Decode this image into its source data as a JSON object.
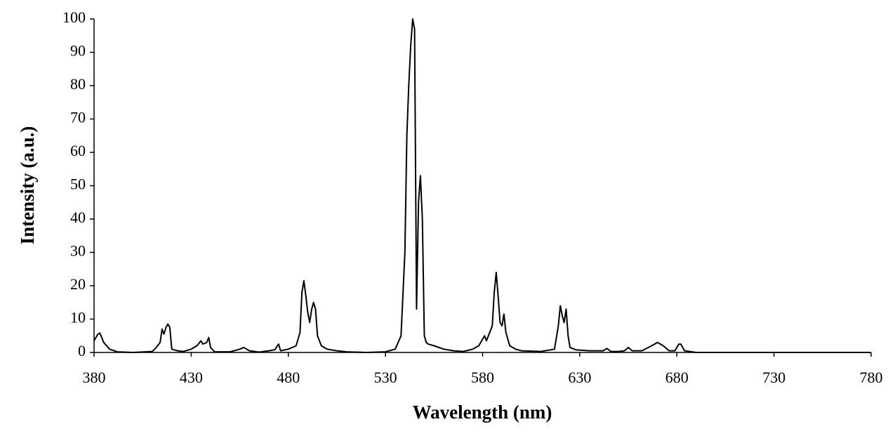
{
  "chart_data": {
    "type": "line",
    "xlabel": "Wavelength (nm)",
    "ylabel": "Intensity (a.u.)",
    "xlim": [
      380,
      780
    ],
    "xticks": [
      380,
      430,
      480,
      530,
      580,
      630,
      680,
      730,
      780
    ],
    "ylim": [
      0,
      100
    ],
    "yticks": [
      0,
      10,
      20,
      30,
      40,
      50,
      60,
      70,
      80,
      90,
      100
    ],
    "grid": false,
    "series": [
      {
        "color": "#000000",
        "x": [
          380,
          382,
          383,
          385,
          388,
          392,
          400,
          410,
          412,
          414,
          415,
          416,
          417,
          418,
          419,
          420,
          423,
          426,
          430,
          433,
          435,
          436,
          438,
          439,
          440,
          442,
          450,
          455,
          457,
          460,
          465,
          470,
          473,
          475,
          476,
          480,
          484,
          486,
          487,
          488,
          489,
          490,
          491,
          492,
          493,
          494,
          495,
          497,
          500,
          505,
          510,
          520,
          530,
          535,
          538,
          540,
          541,
          542,
          543,
          544,
          545,
          546,
          547,
          548,
          549,
          550,
          551,
          552,
          555,
          560,
          565,
          570,
          575,
          578,
          580,
          581,
          582,
          583,
          585,
          586,
          587,
          588,
          589,
          590,
          591,
          592,
          594,
          597,
          600,
          610,
          617,
          619,
          620,
          621,
          622,
          623,
          624,
          625,
          628,
          635,
          642,
          644,
          646,
          650,
          653,
          655,
          657,
          662,
          667,
          670,
          673,
          676,
          679,
          681,
          682,
          684,
          690,
          780
        ],
        "values": [
          3.5,
          5.5,
          5.8,
          3,
          1,
          0.2,
          0,
          0.3,
          1.5,
          3,
          7,
          5.5,
          7.5,
          8.5,
          7.5,
          1,
          0.5,
          0.3,
          1,
          2,
          3.5,
          2.5,
          3,
          4.5,
          1.5,
          0.2,
          0.2,
          1,
          1.5,
          0.5,
          0.1,
          0.5,
          0.8,
          2.5,
          0.5,
          1,
          2,
          6,
          18,
          21.5,
          17,
          12,
          9,
          13,
          15,
          13,
          5,
          2,
          1,
          0.5,
          0.2,
          0,
          0.2,
          1,
          5,
          30,
          65,
          80,
          92,
          100,
          97,
          13,
          45,
          53,
          40,
          5,
          3,
          2.5,
          2,
          1,
          0.5,
          0.3,
          1,
          2,
          4,
          5,
          3.5,
          5,
          8,
          18,
          24,
          17,
          9,
          8,
          11.5,
          6,
          2,
          1,
          0.5,
          0.3,
          1,
          8,
          14,
          11,
          9,
          13,
          5,
          1.5,
          0.8,
          0.5,
          0.5,
          1.2,
          0.3,
          0.3,
          0.5,
          1.5,
          0.5,
          0.5,
          2,
          3,
          2,
          0.5,
          0.5,
          2.5,
          2.5,
          0.5,
          0,
          0
        ]
      }
    ]
  }
}
